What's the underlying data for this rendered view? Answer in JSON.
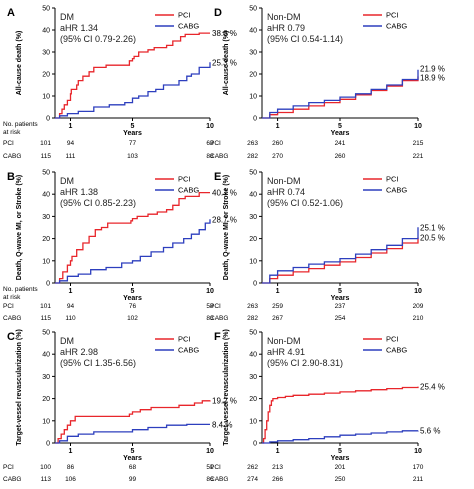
{
  "chart_data": [
    {
      "panel": "A",
      "type": "line",
      "ylabel": "All-cause death (%)",
      "xlabel": "Years",
      "ylim": [
        0,
        50
      ],
      "xlim": [
        0,
        10
      ],
      "yticks": [
        "0",
        "10",
        "20",
        "30",
        "40",
        "50"
      ],
      "xticks": [
        "1",
        "5",
        "10"
      ],
      "grid": false,
      "annotation": [
        "DM",
        "aHR 1.34",
        "(95% CI 0.79-2.26)"
      ],
      "legend": {
        "placement": "top-right",
        "entries": [
          "PCI",
          "CABG"
        ]
      },
      "series": [
        {
          "name": "PCI",
          "color": "#e8262b",
          "end_label": "38.6 %",
          "x": [
            0,
            0.3,
            0.45,
            0.6,
            0.8,
            1.0,
            1.05,
            1.4,
            1.5,
            1.8,
            2.2,
            2.5,
            3.3,
            4.3,
            4.8,
            5.0,
            5.1,
            5.4,
            6.0,
            6.4,
            7.2,
            7.6,
            8.1,
            8.4,
            9.3,
            10
          ],
          "y": [
            0,
            2,
            4,
            6,
            8,
            11,
            13,
            15,
            17,
            19,
            21,
            23,
            24,
            24,
            26,
            27,
            28,
            30,
            31,
            32,
            33,
            35,
            37,
            38,
            38.6,
            38.6
          ]
        },
        {
          "name": "CABG",
          "color": "#2d3fbe",
          "end_label": "25.3 %",
          "x": [
            0,
            0.3,
            0.8,
            1.5,
            2.5,
            3.5,
            4.5,
            5.0,
            5.4,
            6.0,
            6.5,
            7.0,
            8.0,
            8.5,
            8.8,
            9.3,
            10
          ],
          "y": [
            0,
            1,
            2,
            3,
            5,
            6,
            7,
            9,
            10,
            12,
            13,
            15,
            17,
            19,
            20,
            23,
            25.3
          ]
        }
      ],
      "risk_table": {
        "header": "No. patients at risk",
        "rows": [
          {
            "label": "PCI",
            "values": [
              "101",
              "94",
              "77",
              "63"
            ]
          },
          {
            "label": "CABG",
            "values": [
              "115",
              "111",
              "103",
              "88"
            ]
          }
        ]
      }
    },
    {
      "panel": "D",
      "type": "line",
      "ylabel": "All-cause death (%)",
      "xlabel": "Years",
      "ylim": [
        0,
        50
      ],
      "xlim": [
        0,
        10
      ],
      "yticks": [
        "0",
        "10",
        "20",
        "30",
        "40",
        "50"
      ],
      "xticks": [
        "1",
        "5",
        "10"
      ],
      "grid": false,
      "annotation": [
        "Non-DM",
        "aHR 0.79",
        "(95% CI 0.54-1.14)"
      ],
      "legend": {
        "placement": "top-right",
        "entries": [
          "PCI",
          "CABG"
        ]
      },
      "series": [
        {
          "name": "PCI",
          "color": "#e8262b",
          "end_label": "18.9 %",
          "x": [
            0,
            0.5,
            1,
            2,
            3,
            4,
            5,
            6,
            7,
            8,
            9,
            10
          ],
          "y": [
            0,
            1.5,
            2.5,
            4,
            5.5,
            7,
            8.5,
            10.5,
            12.5,
            14.5,
            17,
            18.9
          ]
        },
        {
          "name": "CABG",
          "color": "#2d3fbe",
          "end_label": "21.9 %",
          "x": [
            0,
            0.5,
            1,
            2,
            3,
            4,
            5,
            6,
            7,
            8,
            9,
            10
          ],
          "y": [
            0,
            2.5,
            4,
            5.5,
            7,
            8,
            9.5,
            11,
            13,
            15,
            17.5,
            21.9
          ]
        }
      ],
      "risk_table": {
        "header": "",
        "rows": [
          {
            "label": "PCI",
            "values": [
              "263",
              "260",
              "241",
              "215"
            ]
          },
          {
            "label": "CABG",
            "values": [
              "282",
              "270",
              "260",
              "221"
            ]
          }
        ]
      }
    },
    {
      "panel": "B",
      "type": "line",
      "ylabel": "Death, Q-wave MI, or Stroke (%)",
      "xlabel": "Years",
      "ylim": [
        0,
        50
      ],
      "xlim": [
        0,
        10
      ],
      "yticks": [
        "0",
        "10",
        "20",
        "30",
        "40",
        "50"
      ],
      "xticks": [
        "1",
        "5",
        "10"
      ],
      "grid": false,
      "annotation": [
        "DM",
        "aHR 1.38",
        "(95% CI 0.85-2.23)"
      ],
      "legend": {
        "placement": "top-right",
        "entries": [
          "PCI",
          "CABG"
        ]
      },
      "series": [
        {
          "name": "PCI",
          "color": "#e8262b",
          "end_label": "40.7 %",
          "x": [
            0,
            0.3,
            0.5,
            0.8,
            1.0,
            1.1,
            1.4,
            1.8,
            2.2,
            2.6,
            3.0,
            3.4,
            4.5,
            4.9,
            5.0,
            5.3,
            6.0,
            6.6,
            7.2,
            7.6,
            8.0,
            8.4,
            9.3,
            10
          ],
          "y": [
            0,
            2,
            5,
            8,
            10,
            12,
            15,
            18,
            21,
            24,
            25,
            27,
            27,
            28,
            29,
            30,
            31,
            32,
            33,
            35,
            38,
            39,
            40.7,
            40.7
          ]
        },
        {
          "name": "CABG",
          "color": "#2d3fbe",
          "end_label": "28.7 %",
          "x": [
            0,
            0.3,
            0.8,
            1.5,
            2.3,
            3.3,
            4.3,
            5.0,
            5.5,
            6.2,
            7.0,
            7.6,
            8.3,
            8.8,
            9.3,
            9.7,
            10
          ],
          "y": [
            0,
            1,
            3,
            4,
            6,
            7,
            9,
            10,
            12,
            14,
            16,
            18,
            20,
            22,
            24,
            27,
            28.7
          ]
        }
      ],
      "risk_table": {
        "header": "No. patients at risk",
        "rows": [
          {
            "label": "PCI",
            "values": [
              "101",
              "94",
              "76",
              "58"
            ]
          },
          {
            "label": "CABG",
            "values": [
              "115",
              "110",
              "102",
              "83"
            ]
          }
        ]
      }
    },
    {
      "panel": "E",
      "type": "line",
      "ylabel": "Death, Q-wave MI, or Stroke (%)",
      "xlabel": "Years",
      "ylim": [
        0,
        50
      ],
      "xlim": [
        0,
        10
      ],
      "yticks": [
        "0",
        "10",
        "20",
        "30",
        "40",
        "50"
      ],
      "xticks": [
        "1",
        "5",
        "10"
      ],
      "grid": false,
      "annotation": [
        "Non-DM",
        "aHR 0.74",
        "(95% CI 0.52-1.06)"
      ],
      "legend": {
        "placement": "top-right",
        "entries": [
          "PCI",
          "CABG"
        ]
      },
      "series": [
        {
          "name": "PCI",
          "color": "#e8262b",
          "end_label": "20.5 %",
          "x": [
            0,
            0.5,
            1,
            2,
            3,
            4,
            5,
            6,
            7,
            8,
            9,
            10
          ],
          "y": [
            0,
            2,
            3.5,
            5,
            6.5,
            8,
            9.5,
            11.5,
            13.5,
            15.5,
            18,
            20.5
          ]
        },
        {
          "name": "CABG",
          "color": "#2d3fbe",
          "end_label": "25.1 %",
          "x": [
            0,
            0.5,
            1,
            2,
            3,
            4,
            5,
            6,
            7,
            8,
            9,
            10
          ],
          "y": [
            0,
            3.5,
            5.5,
            7,
            8.5,
            9.5,
            11,
            13,
            15,
            17,
            20,
            25.1
          ]
        }
      ],
      "risk_table": {
        "header": "",
        "rows": [
          {
            "label": "PCI",
            "values": [
              "263",
              "259",
              "237",
              "209"
            ]
          },
          {
            "label": "CABG",
            "values": [
              "282",
              "267",
              "254",
              "210"
            ]
          }
        ]
      }
    },
    {
      "panel": "C",
      "type": "line",
      "ylabel": "Target-vessel revascularization (%)",
      "xlabel": "Years",
      "ylim": [
        0,
        50
      ],
      "xlim": [
        0,
        10
      ],
      "yticks": [
        "0",
        "10",
        "20",
        "30",
        "40",
        "50"
      ],
      "xticks": [
        "1",
        "5",
        "10"
      ],
      "grid": false,
      "annotation": [
        "DM",
        "aHR 2.98",
        "(95% CI 1.35-6.56)"
      ],
      "legend": {
        "placement": "top-right",
        "entries": [
          "PCI",
          "CABG"
        ]
      },
      "series": [
        {
          "name": "PCI",
          "color": "#e8262b",
          "end_label": "19.2 %",
          "x": [
            0,
            0.2,
            0.4,
            0.6,
            0.8,
            1.0,
            1.3,
            2.0,
            3.5,
            4.8,
            5.0,
            5.5,
            6.2,
            7.5,
            8.0,
            8.5,
            9.0,
            9.5,
            10
          ],
          "y": [
            0,
            2,
            4,
            6,
            8,
            10,
            12,
            12,
            12,
            13,
            14,
            15,
            16,
            16,
            17,
            17,
            18,
            19,
            19.2
          ]
        },
        {
          "name": "CABG",
          "color": "#2d3fbe",
          "end_label": "8.4 %",
          "x": [
            0,
            0.3,
            0.8,
            1.5,
            2.5,
            4.0,
            5.0,
            6.0,
            7.2,
            8.5,
            10
          ],
          "y": [
            0,
            1,
            3,
            4,
            5,
            5,
            6,
            7,
            8,
            8.4,
            8.4
          ]
        }
      ],
      "risk_table": {
        "header": "",
        "rows": [
          {
            "label": "PCI",
            "values": [
              "100",
              "86",
              "68",
              "51"
            ]
          },
          {
            "label": "CABG",
            "values": [
              "113",
              "106",
              "99",
              "86"
            ]
          }
        ]
      }
    },
    {
      "panel": "F",
      "type": "line",
      "ylabel": "Target-vessel revascularization (%)",
      "xlabel": "Years",
      "ylim": [
        0,
        50
      ],
      "xlim": [
        0,
        10
      ],
      "yticks": [
        "0",
        "10",
        "20",
        "30",
        "40",
        "50"
      ],
      "xticks": [
        "1",
        "5",
        "10"
      ],
      "grid": false,
      "annotation": [
        "Non-DM",
        "aHR 4.91",
        "(95% CI 2.90-8.31)"
      ],
      "legend": {
        "placement": "top-right",
        "entries": [
          "PCI",
          "CABG"
        ]
      },
      "series": [
        {
          "name": "PCI",
          "color": "#e8262b",
          "end_label": "25.4 %",
          "x": [
            0,
            0.1,
            0.2,
            0.3,
            0.4,
            0.5,
            0.6,
            0.7,
            1.0,
            1.5,
            2.0,
            3.0,
            4.0,
            5.0,
            6.0,
            7.0,
            8.0,
            9.0,
            10
          ],
          "y": [
            0,
            2,
            6,
            10,
            14,
            17,
            19,
            20,
            20.5,
            21,
            21.5,
            22,
            22.5,
            23,
            23.5,
            24,
            24.5,
            25,
            25.4
          ]
        },
        {
          "name": "CABG",
          "color": "#2d3fbe",
          "end_label": "5.6 %",
          "x": [
            0,
            0.5,
            1,
            2,
            3,
            4,
            5,
            6,
            7,
            8,
            9,
            10
          ],
          "y": [
            0,
            0.5,
            1,
            1.5,
            2,
            2.8,
            3.5,
            4,
            4.5,
            5,
            5.5,
            5.6
          ]
        }
      ],
      "risk_table": {
        "header": "",
        "rows": [
          {
            "label": "PCI",
            "values": [
              "262",
              "213",
              "201",
              "170"
            ]
          },
          {
            "label": "CABG",
            "values": [
              "274",
              "266",
              "250",
              "211"
            ]
          }
        ]
      }
    }
  ]
}
